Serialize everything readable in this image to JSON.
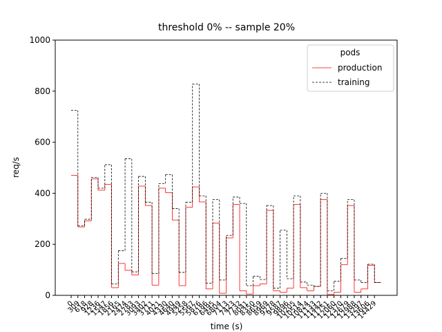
{
  "chart_data": {
    "type": "step",
    "title": "threshold 0% -- sample 20%",
    "x_label": "time (s)",
    "y_label": "req/s",
    "legend_title": "pods",
    "legend_position": "upper right",
    "categories": [
      "0",
      "309",
      "618",
      "928",
      "1236",
      "1547",
      "1856",
      "2165",
      "2474",
      "2783",
      "3093",
      "3402",
      "3711",
      "4021",
      "4330",
      "4640",
      "4949",
      "5258",
      "5567",
      "5876",
      "6186",
      "6495",
      "6804",
      "7113",
      "7423",
      "7732",
      "8041",
      "8350",
      "8659",
      "8969",
      "9278",
      "9587",
      "9896",
      "10205",
      "10514",
      "10824",
      "11133",
      "11442",
      "11751",
      "12060",
      "12370",
      "12679",
      "12988",
      "13297",
      "13606",
      "14429"
    ],
    "series": [
      {
        "name": "production",
        "color": "#ff0000",
        "dash": false,
        "values": [
          470,
          268,
          292,
          456,
          412,
          435,
          30,
          125,
          98,
          80,
          428,
          352,
          40,
          420,
          402,
          295,
          38,
          345,
          425,
          366,
          25,
          283,
          8,
          225,
          356,
          18,
          5,
          38,
          45,
          333,
          18,
          12,
          28,
          356,
          30,
          18,
          35,
          375,
          3,
          12,
          120,
          352,
          12,
          25,
          118,
          50
        ]
      },
      {
        "name": "training",
        "color": "#000000",
        "dash": true,
        "values": [
          725,
          272,
          298,
          462,
          420,
          512,
          45,
          175,
          535,
          92,
          466,
          365,
          85,
          438,
          473,
          340,
          90,
          365,
          828,
          390,
          48,
          375,
          60,
          235,
          385,
          360,
          38,
          75,
          62,
          352,
          28,
          255,
          65,
          390,
          52,
          40,
          35,
          400,
          18,
          55,
          145,
          375,
          60,
          50,
          122,
          50
        ]
      }
    ],
    "ylim": [
      0,
      1000
    ],
    "yticks": [
      0,
      200,
      400,
      600,
      800,
      1000
    ],
    "grid": false
  }
}
